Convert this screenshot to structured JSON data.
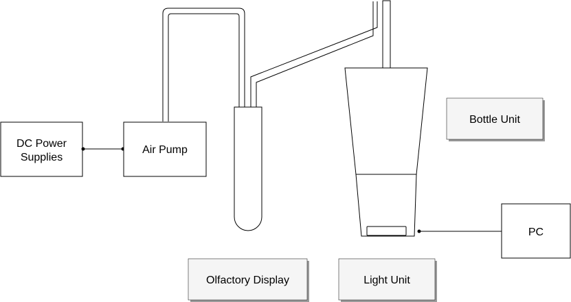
{
  "diagram": {
    "boxes": {
      "dc_power": {
        "line1": "DC Power",
        "line2": "Supplies"
      },
      "air_pump": {
        "label": "Air Pump"
      },
      "pc": {
        "label": "PC"
      }
    },
    "legend": {
      "bottle_unit": "Bottle Unit",
      "olfactory_display": "Olfactory Display",
      "light_unit": "Light Unit"
    },
    "colors": {
      "stroke": "#000000",
      "legend_fill": "#f5f5f5",
      "legend_shadow": "#9a9a9a",
      "background": "#ffffff"
    }
  }
}
